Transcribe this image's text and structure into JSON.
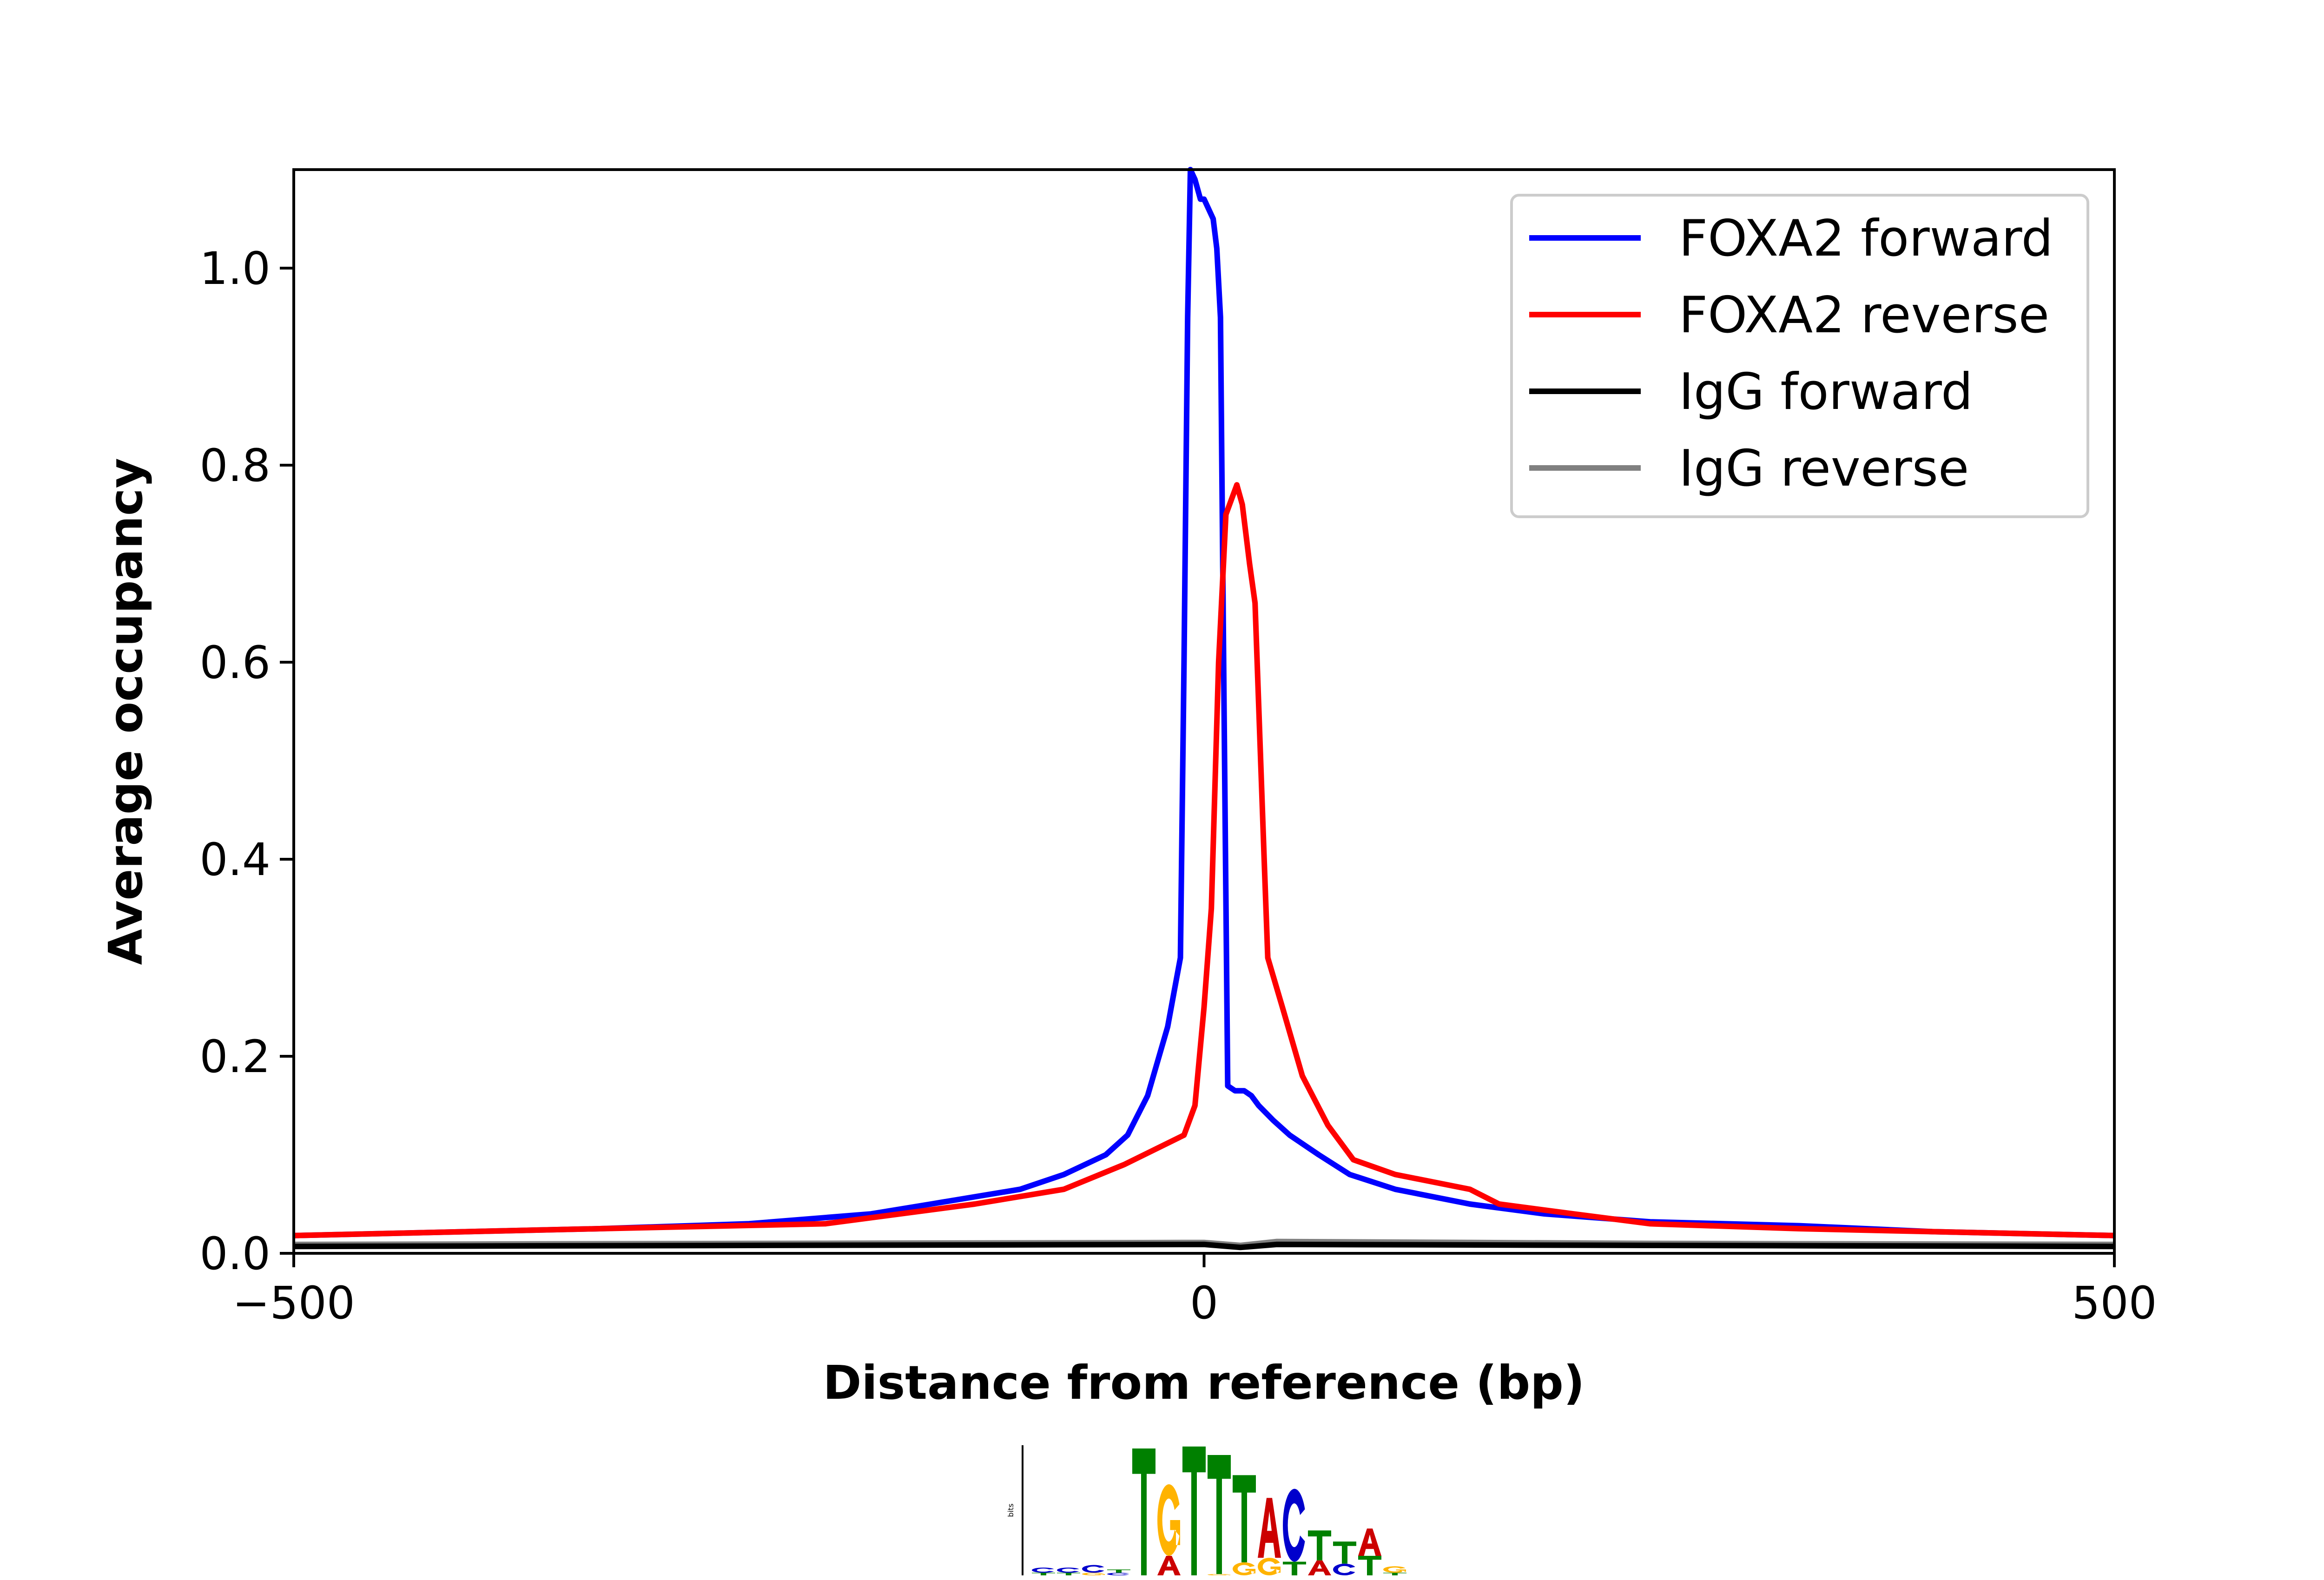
{
  "chart_data": {
    "type": "line",
    "title": "",
    "xlabel": "Distance from reference (bp)",
    "ylabel": "Average occupancy",
    "xlim": [
      -500,
      500
    ],
    "ylim": [
      0,
      1.1
    ],
    "xticks": [
      -500,
      0,
      500
    ],
    "xtick_labels": [
      "−500",
      "0",
      "500"
    ],
    "yticks": [
      0.0,
      0.2,
      0.4,
      0.6,
      0.8,
      1.0
    ],
    "ytick_labels": [
      "0.0",
      "0.2",
      "0.4",
      "0.6",
      "0.8",
      "1.0"
    ],
    "grid": false,
    "legend_position": "top-right",
    "series": [
      {
        "name": "FOXA2 forward",
        "color": "#0000ff",
        "x": [
          -500,
          -332,
          -250,
          -183,
          -150,
          -101,
          -77,
          -54,
          -42,
          -31,
          -20,
          -16,
          -13,
          -11,
          -9,
          -7.5,
          -5,
          -2,
          0,
          2.5,
          5,
          7,
          9,
          11,
          13,
          17,
          22,
          26,
          30,
          38,
          47,
          63,
          80,
          105,
          146,
          187,
          245,
          327,
          400,
          500
        ],
        "y": [
          0.018,
          0.025,
          0.03,
          0.04,
          0.05,
          0.065,
          0.08,
          0.1,
          0.12,
          0.16,
          0.23,
          0.27,
          0.3,
          0.6,
          0.95,
          1.1,
          1.09,
          1.07,
          1.07,
          1.06,
          1.05,
          1.02,
          0.95,
          0.55,
          0.17,
          0.165,
          0.165,
          0.16,
          0.15,
          0.135,
          0.12,
          0.1,
          0.08,
          0.065,
          0.05,
          0.04,
          0.032,
          0.028,
          0.022,
          0.018
        ]
      },
      {
        "name": "FOXA2 reverse",
        "color": "#ff0000",
        "x": [
          -500,
          -332,
          -208,
          -126,
          -77,
          -44,
          -11,
          -5,
          0,
          4,
          8,
          12,
          18,
          21,
          25,
          28,
          33,
          35,
          43,
          54,
          68,
          82,
          105,
          146,
          162,
          203,
          245,
          327,
          400,
          500
        ],
        "y": [
          0.018,
          0.025,
          0.03,
          0.05,
          0.065,
          0.09,
          0.12,
          0.15,
          0.25,
          0.35,
          0.6,
          0.75,
          0.78,
          0.76,
          0.7,
          0.66,
          0.4,
          0.3,
          0.25,
          0.18,
          0.13,
          0.095,
          0.08,
          0.065,
          0.05,
          0.04,
          0.03,
          0.025,
          0.022,
          0.018
        ]
      },
      {
        "name": "IgG forward",
        "color": "#000000",
        "x": [
          -500,
          -250,
          0,
          20,
          40,
          250,
          500
        ],
        "y": [
          0.007,
          0.008,
          0.009,
          0.006,
          0.009,
          0.008,
          0.007
        ]
      },
      {
        "name": "IgG reverse",
        "color": "#808080",
        "x": [
          -500,
          -250,
          0,
          20,
          40,
          250,
          500
        ],
        "y": [
          0.009,
          0.01,
          0.011,
          0.008,
          0.012,
          0.01,
          0.009
        ]
      }
    ]
  },
  "motif_logo": {
    "ylabel": "bits",
    "columns": [
      {
        "letters": [
          {
            "l": "C",
            "c": "#0000cc",
            "h": 0.08
          },
          {
            "l": "T",
            "c": "#008000",
            "h": 0.04
          }
        ]
      },
      {
        "letters": [
          {
            "l": "C",
            "c": "#0000cc",
            "h": 0.08
          },
          {
            "l": "T",
            "c": "#008000",
            "h": 0.04
          }
        ]
      },
      {
        "letters": [
          {
            "l": "C",
            "c": "#0000cc",
            "h": 0.12
          },
          {
            "l": "G",
            "c": "#ffb300",
            "h": 0.04
          }
        ]
      },
      {
        "letters": [
          {
            "l": "T",
            "c": "#008000",
            "h": 0.05
          },
          {
            "l": "C",
            "c": "#0000cc",
            "h": 0.04
          }
        ]
      },
      {
        "letters": [
          {
            "l": "T",
            "c": "#008000",
            "h": 1.95
          }
        ]
      },
      {
        "letters": [
          {
            "l": "G",
            "c": "#ffb300",
            "h": 1.1
          },
          {
            "l": "A",
            "c": "#cc0000",
            "h": 0.3
          }
        ]
      },
      {
        "letters": [
          {
            "l": "T",
            "c": "#008000",
            "h": 1.98
          }
        ]
      },
      {
        "letters": [
          {
            "l": "T",
            "c": "#008000",
            "h": 1.83
          },
          {
            "l": "G",
            "c": "#ffb300",
            "h": 0.02
          }
        ]
      },
      {
        "letters": [
          {
            "l": "T",
            "c": "#008000",
            "h": 1.34
          },
          {
            "l": "G",
            "c": "#ffb300",
            "h": 0.2
          }
        ]
      },
      {
        "letters": [
          {
            "l": "A",
            "c": "#cc0000",
            "h": 0.92
          },
          {
            "l": "G",
            "c": "#ffb300",
            "h": 0.27
          }
        ]
      },
      {
        "letters": [
          {
            "l": "C",
            "c": "#0000cc",
            "h": 1.12
          },
          {
            "l": "T",
            "c": "#008000",
            "h": 0.21
          }
        ]
      },
      {
        "letters": [
          {
            "l": "T",
            "c": "#008000",
            "h": 0.46
          },
          {
            "l": "A",
            "c": "#cc0000",
            "h": 0.23
          }
        ]
      },
      {
        "letters": [
          {
            "l": "T",
            "c": "#008000",
            "h": 0.34
          },
          {
            "l": "C",
            "c": "#0000cc",
            "h": 0.18
          }
        ]
      },
      {
        "letters": [
          {
            "l": "A",
            "c": "#cc0000",
            "h": 0.42
          },
          {
            "l": "T",
            "c": "#008000",
            "h": 0.3
          }
        ]
      },
      {
        "letters": [
          {
            "l": "G",
            "c": "#ffb300",
            "h": 0.1
          },
          {
            "l": "T",
            "c": "#008000",
            "h": 0.04
          }
        ]
      }
    ]
  }
}
